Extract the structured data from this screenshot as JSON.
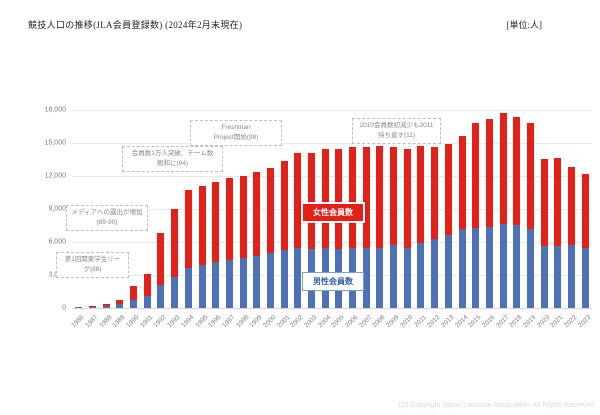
{
  "header": {
    "title": "競技人口の推移(JLA会員登録数) (2024年2月末現在)",
    "unit_label": "[単位:人]"
  },
  "footer": {
    "copyright": "(C) Copyright Japan Lacrosse Association. All Rights Reserved"
  },
  "chart_data": {
    "type": "bar",
    "stacked": true,
    "title": "競技人口の推移(JLA会員登録数) (2024年2月末現在)",
    "unit": "人",
    "xlabel": "",
    "ylabel": "",
    "ylim": [
      0,
      18000
    ],
    "ytick_interval": 3000,
    "ytick_labels": [
      "0",
      "3,000",
      "6,000",
      "9,000",
      "12,000",
      "15,000",
      "18,000"
    ],
    "grid": true,
    "legend_position": "inline-on-plot",
    "categories": [
      1986,
      1987,
      1988,
      1989,
      1990,
      1991,
      1992,
      1993,
      1994,
      1995,
      1996,
      1997,
      1998,
      1999,
      2000,
      2001,
      2002,
      2003,
      2004,
      2005,
      2006,
      2007,
      2008,
      2009,
      2010,
      2011,
      2012,
      2013,
      2014,
      2015,
      2016,
      2017,
      2018,
      2019,
      2020,
      2021,
      2022,
      2023
    ],
    "series": [
      {
        "name": "男性会員数",
        "color": "#4d71b5",
        "values": [
          50,
          100,
          200,
          400,
          750,
          1050,
          2100,
          2800,
          3600,
          3900,
          4150,
          4400,
          4550,
          4750,
          5000,
          5250,
          5500,
          5400,
          5450,
          5400,
          5450,
          5500,
          5500,
          5700,
          5450,
          5900,
          6250,
          6650,
          7150,
          7250,
          7400,
          7650,
          7550,
          7200,
          5600,
          5650,
          5750,
          5500
        ]
      },
      {
        "name": "女性会員数",
        "color": "#e32119",
        "values": [
          50,
          100,
          200,
          300,
          1250,
          2000,
          4700,
          6200,
          7100,
          7200,
          7350,
          7400,
          7450,
          7600,
          7700,
          8100,
          8600,
          8650,
          9000,
          9050,
          9150,
          9100,
          9250,
          8950,
          9050,
          8800,
          8350,
          8250,
          8450,
          9550,
          9800,
          10050,
          9850,
          9650,
          7950,
          7950,
          7100,
          6700
        ]
      }
    ],
    "totals": [
      100,
      200,
      400,
      700,
      2000,
      3050,
      6800,
      9000,
      10700,
      11100,
      11500,
      11800,
      12000,
      12350,
      12700,
      13350,
      14100,
      14050,
      14450,
      14450,
      14600,
      14600,
      14750,
      14650,
      14500,
      14700,
      14600,
      14900,
      15600,
      16800,
      17200,
      17700,
      17400,
      16850,
      13550,
      13600,
      12850,
      12200
    ],
    "annotations": [
      {
        "id": "ann-1988",
        "text": "第1回関東学生リー\nグ(88)"
      },
      {
        "id": "ann-1989",
        "text": "メディアへの露出が増加\n(89-90)"
      },
      {
        "id": "ann-1994",
        "text": "会員数1万人突破、チーム数\n飽和に(94)"
      },
      {
        "id": "ann-1998",
        "text": "Freshman\nProject開始(98)"
      },
      {
        "id": "ann-2011",
        "text": "2010会員数初減少も2011\n持ち直す(11)"
      }
    ],
    "inline_labels": {
      "female": "女性会員数",
      "male": "男性会員数"
    }
  }
}
